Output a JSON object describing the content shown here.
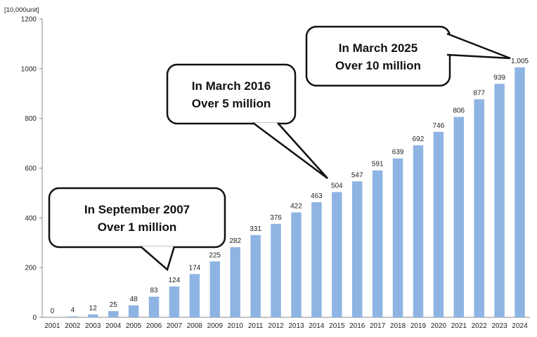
{
  "chart_data": {
    "type": "bar",
    "title": "",
    "unit_label": "[10,000unit]",
    "xlabel": "",
    "ylabel": "",
    "ylim": [
      0,
      1200
    ],
    "yticks": [
      0,
      200,
      400,
      600,
      800,
      1000,
      1200
    ],
    "grid": false,
    "bar_color": "#8eb4e3",
    "categories": [
      "2001",
      "2002",
      "2003",
      "2004",
      "2005",
      "2006",
      "2007",
      "2008",
      "2009",
      "2010",
      "2011",
      "2012",
      "2013",
      "2014",
      "2015",
      "2016",
      "2017",
      "2018",
      "2019",
      "2020",
      "2021",
      "2022",
      "2023",
      "2024"
    ],
    "values": [
      0,
      4,
      12,
      25,
      48,
      83,
      124,
      174,
      225,
      282,
      331,
      376,
      422,
      463,
      504,
      547,
      591,
      639,
      692,
      746,
      806,
      877,
      939,
      1005
    ],
    "value_labels": [
      "0",
      "4",
      "12",
      "25",
      "48",
      "83",
      "124",
      "174",
      "225",
      "282",
      "331",
      "376",
      "422",
      "463",
      "504",
      "547",
      "591",
      "639",
      "692",
      "746",
      "806",
      "877",
      "939",
      "1,005"
    ],
    "annotations": [
      {
        "lines": [
          "In September 2007",
          "Over 1 million"
        ],
        "target_category": "2007"
      },
      {
        "lines": [
          "In March 2016",
          "Over 5 million"
        ],
        "target_category": "2015"
      },
      {
        "lines": [
          "In March 2025",
          "Over 10 million"
        ],
        "target_category": "2024"
      }
    ]
  }
}
